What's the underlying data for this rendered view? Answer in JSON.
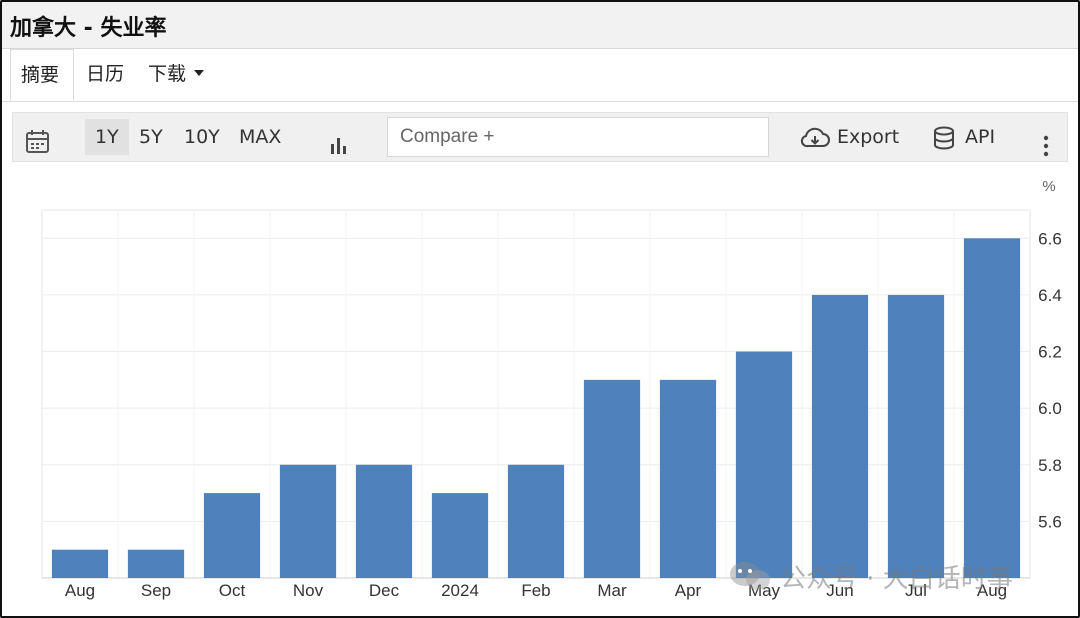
{
  "title": "加拿大 - 失业率",
  "tabs": [
    {
      "label": "摘要"
    },
    {
      "label": "日历"
    },
    {
      "label": "下载"
    }
  ],
  "toolbar": {
    "ranges": [
      "1Y",
      "5Y",
      "10Y",
      "MAX"
    ],
    "active_range": "1Y",
    "compare_placeholder": "Compare +",
    "export_label": "Export",
    "api_label": "API"
  },
  "watermark": {
    "text": "公众号 · 大白话时事"
  },
  "chart_data": {
    "type": "bar",
    "unit": "%",
    "categories": [
      "Aug",
      "Sep",
      "Oct",
      "Nov",
      "Dec",
      "2024",
      "Feb",
      "Mar",
      "Apr",
      "May",
      "Jun",
      "Jul",
      "Aug"
    ],
    "values": [
      5.5,
      5.5,
      5.7,
      5.8,
      5.8,
      5.7,
      5.8,
      6.1,
      6.1,
      6.2,
      6.4,
      6.4,
      6.6
    ],
    "y_ticks": [
      "5.6",
      "5.8",
      "6.0",
      "6.2",
      "6.4",
      "6.6"
    ],
    "ylim": [
      5.4,
      6.7
    ],
    "bar_color": "#4f81bd",
    "grid": true,
    "axis_position": "right"
  }
}
